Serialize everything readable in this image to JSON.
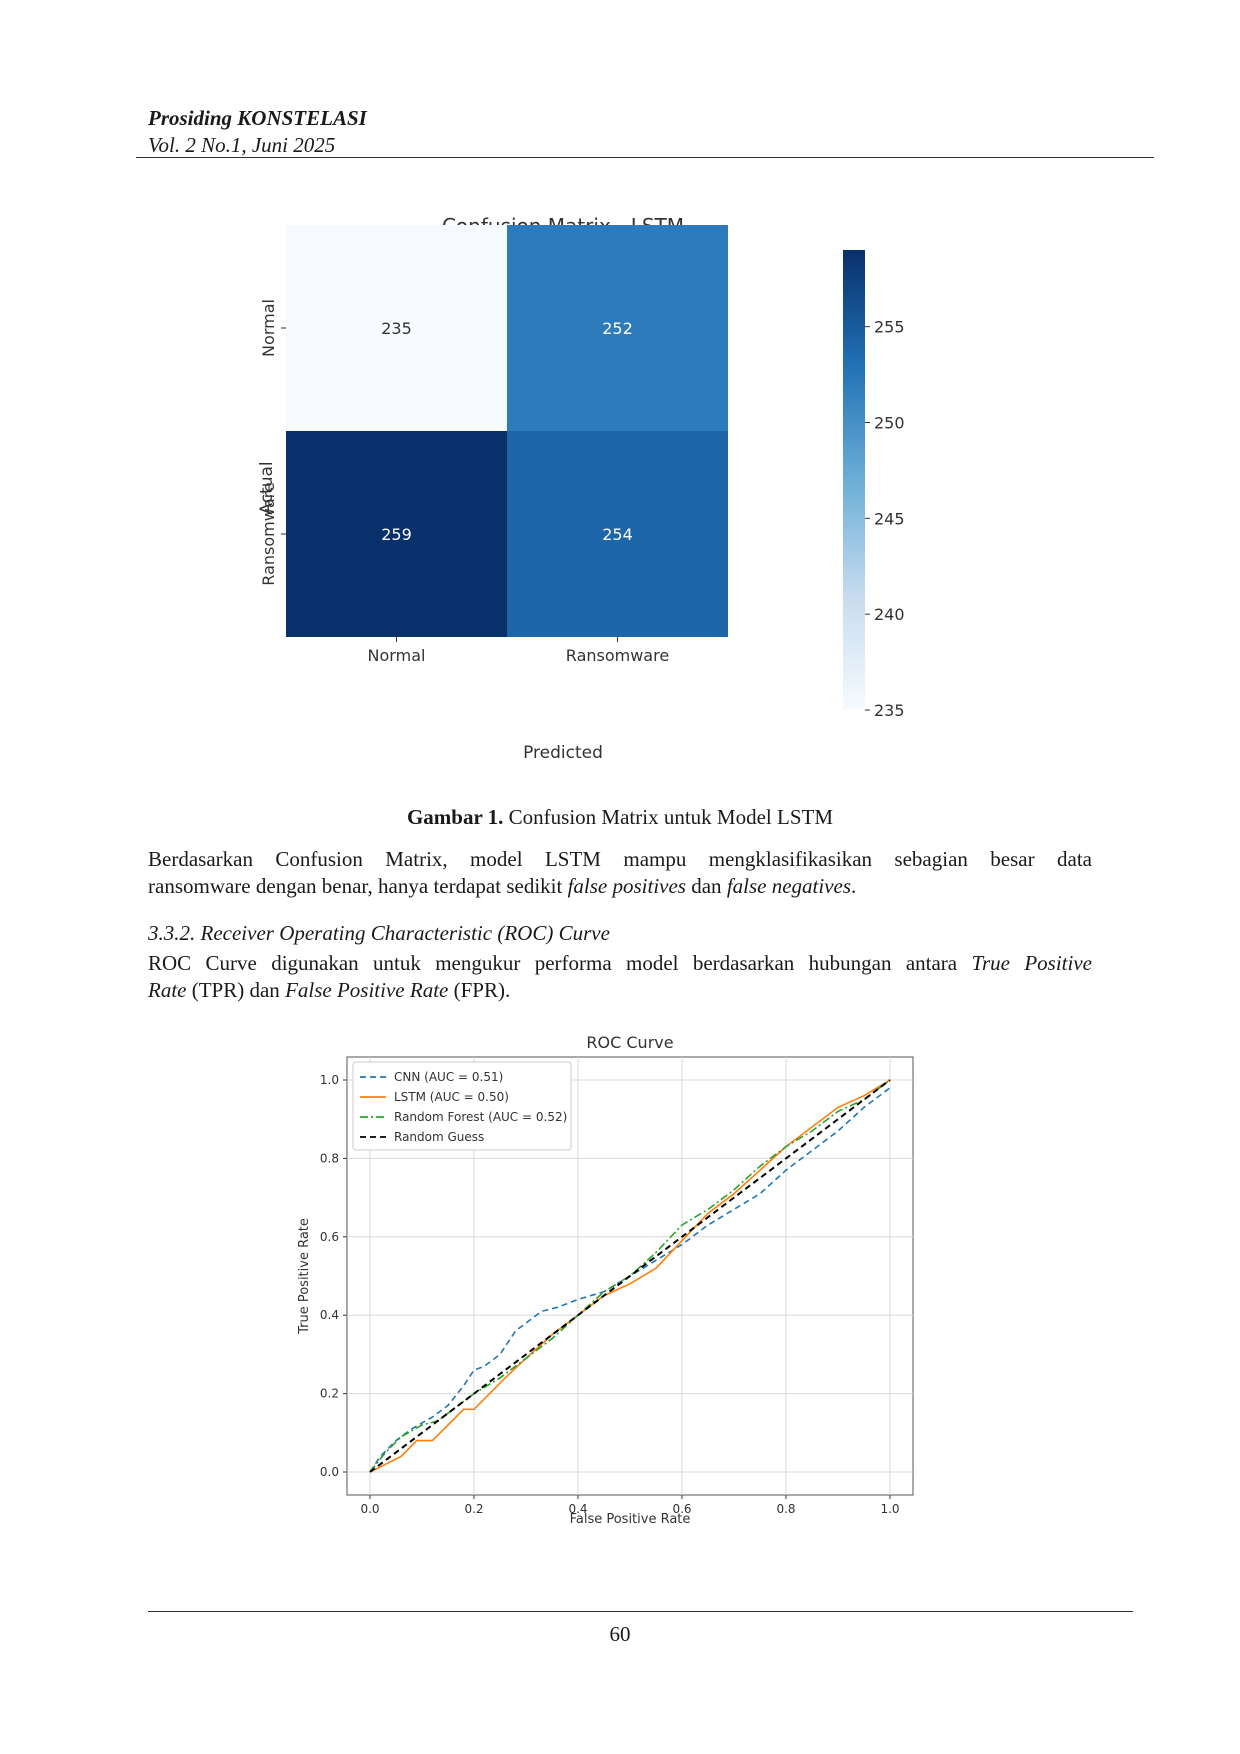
{
  "header": {
    "journal": "Prosiding KONSTELASI",
    "volume": "Vol. 2 No.1, Juni 2025"
  },
  "figure1": {
    "caption_label": "Gambar 1.",
    "caption_text": " Confusion Matrix untuk Model LSTM",
    "chart_data": {
      "type": "heatmap",
      "title": "Confusion Matrix - LSTM",
      "xlabel": "Predicted",
      "ylabel": "Actual",
      "x_categories": [
        "Normal",
        "Ransomware"
      ],
      "y_categories": [
        "Normal",
        "Ransomware"
      ],
      "values": [
        [
          235,
          252
        ],
        [
          259,
          254
        ]
      ],
      "colorbar": {
        "ticks": [
          "255",
          "250",
          "245",
          "240",
          "235"
        ],
        "range": [
          235,
          259
        ],
        "colormap": "Blues"
      }
    }
  },
  "paragraph1": {
    "line1": "Berdasarkan Confusion Matrix, model LSTM mampu mengklasifikasikan sebagian besar data",
    "line2_a": "ransomware dengan benar, hanya terdapat sedikit ",
    "line2_b": "false positives",
    "line2_c": " dan ",
    "line2_d": "false negatives",
    "line2_e": "."
  },
  "section": {
    "heading": "3.3.2. Receiver Operating Characteristic (ROC) Curve"
  },
  "paragraph2": {
    "line1_a": "ROC Curve digunakan untuk mengukur performa model berdasarkan hubungan antara ",
    "line1_b": "True Positive",
    "line2_a": "Rate",
    "line2_b": " (TPR) dan ",
    "line2_c": "False Positive Rate",
    "line2_d": " (FPR)."
  },
  "figure2": {
    "chart_data": {
      "type": "line",
      "title": "ROC Curve",
      "xlabel": "False Positive Rate",
      "ylabel": "True Positive Rate",
      "xlim": [
        0,
        1
      ],
      "ylim": [
        0,
        1
      ],
      "xticks": [
        "0.0",
        "0.2",
        "0.4",
        "0.6",
        "0.8",
        "1.0"
      ],
      "yticks": [
        "0.0",
        "0.2",
        "0.4",
        "0.6",
        "0.8",
        "1.0"
      ],
      "grid": true,
      "legend_position": "top-left",
      "series": [
        {
          "name": "CNN (AUC = 0.51)",
          "color": "#1f77b4",
          "dash": "dashed",
          "x": [
            0,
            0.02,
            0.05,
            0.08,
            0.12,
            0.15,
            0.18,
            0.2,
            0.22,
            0.25,
            0.28,
            0.3,
            0.33,
            0.36,
            0.4,
            0.45,
            0.5,
            0.55,
            0.6,
            0.65,
            0.7,
            0.75,
            0.8,
            0.85,
            0.9,
            0.95,
            1.0
          ],
          "y": [
            0,
            0.04,
            0.08,
            0.11,
            0.14,
            0.17,
            0.22,
            0.26,
            0.27,
            0.3,
            0.36,
            0.38,
            0.41,
            0.42,
            0.44,
            0.46,
            0.5,
            0.54,
            0.58,
            0.63,
            0.67,
            0.71,
            0.77,
            0.82,
            0.87,
            0.93,
            0.98
          ]
        },
        {
          "name": "LSTM (AUC = 0.50)",
          "color": "#ff7f0e",
          "dash": "solid",
          "x": [
            0,
            0.03,
            0.06,
            0.09,
            0.12,
            0.15,
            0.18,
            0.2,
            0.23,
            0.26,
            0.3,
            0.35,
            0.4,
            0.45,
            0.5,
            0.55,
            0.6,
            0.65,
            0.7,
            0.75,
            0.8,
            0.85,
            0.9,
            0.95,
            1.0
          ],
          "y": [
            0,
            0.02,
            0.04,
            0.08,
            0.08,
            0.12,
            0.16,
            0.16,
            0.2,
            0.24,
            0.29,
            0.35,
            0.4,
            0.45,
            0.48,
            0.52,
            0.59,
            0.66,
            0.71,
            0.77,
            0.83,
            0.88,
            0.93,
            0.96,
            1.0
          ]
        },
        {
          "name": "Random Forest (AUC = 0.52)",
          "color": "#2ca02c",
          "dash": "dashdot",
          "x": [
            0,
            0.03,
            0.06,
            0.1,
            0.13,
            0.16,
            0.2,
            0.25,
            0.3,
            0.35,
            0.4,
            0.45,
            0.5,
            0.55,
            0.6,
            0.65,
            0.7,
            0.75,
            0.8,
            0.85,
            0.9,
            0.95,
            1.0
          ],
          "y": [
            0,
            0.05,
            0.09,
            0.12,
            0.13,
            0.16,
            0.2,
            0.24,
            0.29,
            0.34,
            0.4,
            0.46,
            0.5,
            0.56,
            0.63,
            0.67,
            0.72,
            0.78,
            0.83,
            0.87,
            0.92,
            0.95,
            1.0
          ]
        },
        {
          "name": "Random Guess",
          "color": "#000000",
          "dash": "dashed",
          "x": [
            0,
            1
          ],
          "y": [
            0,
            1
          ]
        }
      ]
    }
  },
  "footer": {
    "page_number": "60"
  }
}
